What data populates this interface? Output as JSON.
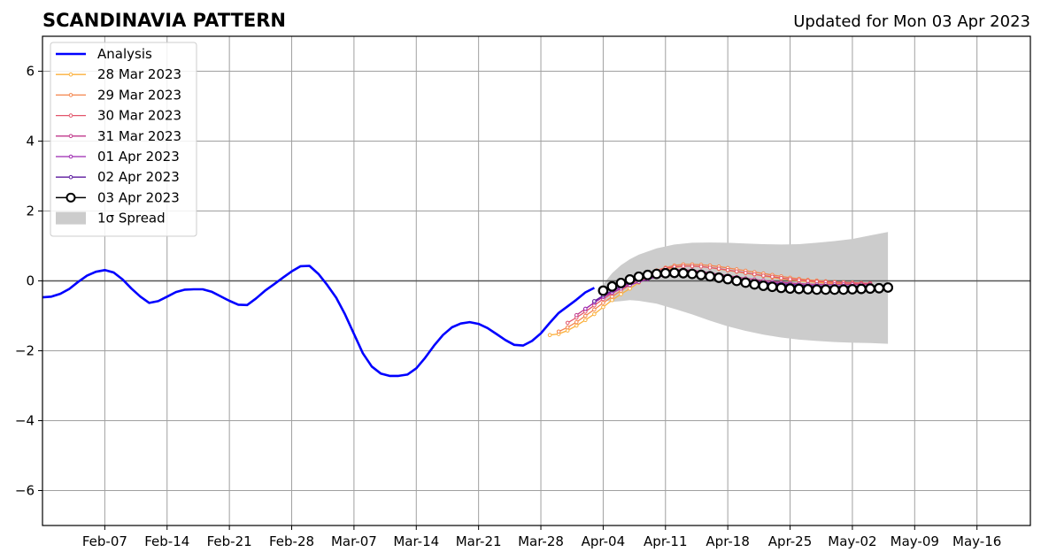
{
  "chart_data": {
    "type": "line",
    "title": "SCANDINAVIA PATTERN",
    "subtitle": "Updated for Mon 03 Apr 2023",
    "xlabel": "",
    "ylabel": "",
    "xlim": [
      "2023-01-31",
      "2023-05-22"
    ],
    "ylim": [
      -7,
      7
    ],
    "grid": true,
    "legend_position": "top-left",
    "x_ticks": [
      "Feb-07",
      "Feb-14",
      "Feb-21",
      "Feb-28",
      "Mar-07",
      "Mar-14",
      "Mar-21",
      "Mar-28",
      "Apr-04",
      "Apr-11",
      "Apr-18",
      "Apr-25",
      "May-02",
      "May-09",
      "May-16"
    ],
    "y_ticks": [
      6,
      4,
      2,
      0,
      -2,
      -4,
      -6
    ],
    "y_tick_labels": [
      "6",
      "4",
      "2",
      "0",
      "−2",
      "−4",
      "−6"
    ],
    "analysis": {
      "name": "Analysis",
      "color": "#0000ff",
      "x": [
        "2023-01-31",
        "2023-02-01",
        "2023-02-02",
        "2023-02-03",
        "2023-02-04",
        "2023-02-05",
        "2023-02-06",
        "2023-02-07",
        "2023-02-08",
        "2023-02-09",
        "2023-02-10",
        "2023-02-11",
        "2023-02-12",
        "2023-02-13",
        "2023-02-14",
        "2023-02-15",
        "2023-02-16",
        "2023-02-17",
        "2023-02-18",
        "2023-02-19",
        "2023-02-20",
        "2023-02-21",
        "2023-02-22",
        "2023-02-23",
        "2023-02-24",
        "2023-02-25",
        "2023-02-26",
        "2023-02-27",
        "2023-02-28",
        "2023-03-01",
        "2023-03-02",
        "2023-03-03",
        "2023-03-04",
        "2023-03-05",
        "2023-03-06",
        "2023-03-07",
        "2023-03-08",
        "2023-03-09",
        "2023-03-10",
        "2023-03-11",
        "2023-03-12",
        "2023-03-13",
        "2023-03-14",
        "2023-03-15",
        "2023-03-16",
        "2023-03-17",
        "2023-03-18",
        "2023-03-19",
        "2023-03-20",
        "2023-03-21",
        "2023-03-22",
        "2023-03-23",
        "2023-03-24",
        "2023-03-25",
        "2023-03-26",
        "2023-03-27",
        "2023-03-28",
        "2023-03-29",
        "2023-03-30",
        "2023-03-31",
        "2023-04-01",
        "2023-04-02",
        "2023-04-03"
      ],
      "y": [
        -0.47,
        -0.45,
        -0.37,
        -0.23,
        -0.03,
        0.15,
        0.26,
        0.31,
        0.24,
        0.04,
        -0.22,
        -0.45,
        -0.63,
        -0.58,
        -0.45,
        -0.32,
        -0.25,
        -0.24,
        -0.24,
        -0.31,
        -0.44,
        -0.57,
        -0.68,
        -0.69,
        -0.5,
        -0.28,
        -0.1,
        0.09,
        0.27,
        0.42,
        0.43,
        0.2,
        -0.12,
        -0.48,
        -0.96,
        -1.52,
        -2.07,
        -2.45,
        -2.65,
        -2.72,
        -2.72,
        -2.68,
        -2.5,
        -2.2,
        -1.85,
        -1.55,
        -1.33,
        -1.22,
        -1.18,
        -1.23,
        -1.35,
        -1.52,
        -1.69,
        -1.83,
        -1.85,
        -1.72,
        -1.5,
        -1.2,
        -0.92,
        -0.73,
        -0.54,
        -0.33,
        -0.2
      ]
    },
    "series": [
      {
        "name": "28 Mar 2023",
        "color": "#fbb03b",
        "x": [
          "2023-03-29",
          "2023-03-30",
          "2023-03-31",
          "2023-04-01",
          "2023-04-02",
          "2023-04-03",
          "2023-04-04",
          "2023-04-05",
          "2023-04-06",
          "2023-04-07",
          "2023-04-08",
          "2023-04-09",
          "2023-04-10",
          "2023-04-11",
          "2023-04-12",
          "2023-04-13",
          "2023-04-14",
          "2023-04-15",
          "2023-04-16",
          "2023-04-17",
          "2023-04-18",
          "2023-04-19",
          "2023-04-20",
          "2023-04-21",
          "2023-04-22",
          "2023-04-23",
          "2023-04-24",
          "2023-04-25",
          "2023-04-26",
          "2023-04-27",
          "2023-04-28",
          "2023-04-29",
          "2023-04-30",
          "2023-05-01",
          "2023-05-02",
          "2023-05-03",
          "2023-05-04"
        ],
        "y": [
          -1.55,
          -1.52,
          -1.42,
          -1.28,
          -1.12,
          -0.95,
          -0.75,
          -0.55,
          -0.38,
          -0.22,
          -0.05,
          0.1,
          0.22,
          0.32,
          0.38,
          0.42,
          0.42,
          0.41,
          0.38,
          0.34,
          0.3,
          0.26,
          0.22,
          0.18,
          0.14,
          0.1,
          0.06,
          0.03,
          0.0,
          -0.02,
          -0.04,
          -0.06,
          -0.07,
          -0.08,
          -0.09,
          -0.1,
          -0.1
        ]
      },
      {
        "name": "29 Mar 2023",
        "color": "#f4844c",
        "x": [
          "2023-03-30",
          "2023-03-31",
          "2023-04-01",
          "2023-04-02",
          "2023-04-03",
          "2023-04-04",
          "2023-04-05",
          "2023-04-06",
          "2023-04-07",
          "2023-04-08",
          "2023-04-09",
          "2023-04-10",
          "2023-04-11",
          "2023-04-12",
          "2023-04-13",
          "2023-04-14",
          "2023-04-15",
          "2023-04-16",
          "2023-04-17",
          "2023-04-18",
          "2023-04-19",
          "2023-04-20",
          "2023-04-21",
          "2023-04-22",
          "2023-04-23",
          "2023-04-24",
          "2023-04-25",
          "2023-04-26",
          "2023-04-27",
          "2023-04-28",
          "2023-04-29",
          "2023-04-30",
          "2023-05-01",
          "2023-05-02",
          "2023-05-03",
          "2023-05-04"
        ],
        "y": [
          -1.45,
          -1.33,
          -1.18,
          -1.0,
          -0.82,
          -0.63,
          -0.45,
          -0.28,
          -0.12,
          0.04,
          0.18,
          0.3,
          0.38,
          0.44,
          0.47,
          0.47,
          0.46,
          0.44,
          0.41,
          0.37,
          0.33,
          0.29,
          0.25,
          0.21,
          0.17,
          0.13,
          0.09,
          0.06,
          0.03,
          0.01,
          -0.01,
          -0.03,
          -0.04,
          -0.05,
          -0.06,
          -0.07
        ]
      },
      {
        "name": "30 Mar 2023",
        "color": "#e2566b",
        "x": [
          "2023-03-31",
          "2023-04-01",
          "2023-04-02",
          "2023-04-03",
          "2023-04-04",
          "2023-04-05",
          "2023-04-06",
          "2023-04-07",
          "2023-04-08",
          "2023-04-09",
          "2023-04-10",
          "2023-04-11",
          "2023-04-12",
          "2023-04-13",
          "2023-04-14",
          "2023-04-15",
          "2023-04-16",
          "2023-04-17",
          "2023-04-18",
          "2023-04-19",
          "2023-04-20",
          "2023-04-21",
          "2023-04-22",
          "2023-04-23",
          "2023-04-24",
          "2023-04-25",
          "2023-04-26",
          "2023-04-27",
          "2023-04-28",
          "2023-04-29",
          "2023-04-30",
          "2023-05-01",
          "2023-05-02",
          "2023-05-03",
          "2023-05-04"
        ],
        "y": [
          -1.2,
          -1.05,
          -0.88,
          -0.7,
          -0.52,
          -0.36,
          -0.21,
          -0.07,
          0.07,
          0.19,
          0.29,
          0.36,
          0.4,
          0.42,
          0.42,
          0.41,
          0.38,
          0.35,
          0.31,
          0.27,
          0.23,
          0.19,
          0.15,
          0.12,
          0.08,
          0.05,
          0.02,
          0.0,
          -0.02,
          -0.03,
          -0.04,
          -0.05,
          -0.06,
          -0.07,
          -0.07
        ]
      },
      {
        "name": "31 Mar 2023",
        "color": "#c13a8c",
        "x": [
          "2023-04-01",
          "2023-04-02",
          "2023-04-03",
          "2023-04-04",
          "2023-04-05",
          "2023-04-06",
          "2023-04-07",
          "2023-04-08",
          "2023-04-09",
          "2023-04-10",
          "2023-04-11",
          "2023-04-12",
          "2023-04-13",
          "2023-04-14",
          "2023-04-15",
          "2023-04-16",
          "2023-04-17",
          "2023-04-18",
          "2023-04-19",
          "2023-04-20",
          "2023-04-21",
          "2023-04-22",
          "2023-04-23",
          "2023-04-24",
          "2023-04-25",
          "2023-04-26",
          "2023-04-27",
          "2023-04-28",
          "2023-04-29",
          "2023-04-30",
          "2023-05-01",
          "2023-05-02",
          "2023-05-03",
          "2023-05-04"
        ],
        "y": [
          -0.98,
          -0.8,
          -0.62,
          -0.45,
          -0.3,
          -0.16,
          -0.03,
          0.09,
          0.19,
          0.26,
          0.3,
          0.32,
          0.32,
          0.3,
          0.27,
          0.23,
          0.19,
          0.15,
          0.11,
          0.07,
          0.04,
          0.01,
          -0.02,
          -0.04,
          -0.06,
          -0.08,
          -0.09,
          -0.1,
          -0.1,
          -0.1,
          -0.1,
          -0.1,
          -0.1,
          -0.1
        ]
      },
      {
        "name": "01 Apr 2023",
        "color": "#9c27b0",
        "x": [
          "2023-04-02",
          "2023-04-03",
          "2023-04-04",
          "2023-04-05",
          "2023-04-06",
          "2023-04-07",
          "2023-04-08",
          "2023-04-09",
          "2023-04-10",
          "2023-04-11",
          "2023-04-12",
          "2023-04-13",
          "2023-04-14",
          "2023-04-15",
          "2023-04-16",
          "2023-04-17",
          "2023-04-18",
          "2023-04-19",
          "2023-04-20",
          "2023-04-21",
          "2023-04-22",
          "2023-04-23",
          "2023-04-24",
          "2023-04-25",
          "2023-04-26",
          "2023-04-27",
          "2023-04-28",
          "2023-04-29",
          "2023-04-30",
          "2023-05-01",
          "2023-05-02",
          "2023-05-03",
          "2023-05-04"
        ],
        "y": [
          -0.8,
          -0.62,
          -0.46,
          -0.33,
          -0.22,
          -0.12,
          -0.03,
          0.05,
          0.11,
          0.15,
          0.17,
          0.17,
          0.16,
          0.14,
          0.11,
          0.08,
          0.05,
          0.02,
          -0.01,
          -0.04,
          -0.06,
          -0.08,
          -0.1,
          -0.12,
          -0.13,
          -0.14,
          -0.15,
          -0.15,
          -0.15,
          -0.15,
          -0.15,
          -0.15,
          -0.15
        ]
      },
      {
        "name": "02 Apr 2023",
        "color": "#5b1a9e",
        "x": [
          "2023-04-03",
          "2023-04-04",
          "2023-04-05",
          "2023-04-06",
          "2023-04-07",
          "2023-04-08",
          "2023-04-09",
          "2023-04-10",
          "2023-04-11",
          "2023-04-12",
          "2023-04-13",
          "2023-04-14",
          "2023-04-15",
          "2023-04-16",
          "2023-04-17",
          "2023-04-18",
          "2023-04-19",
          "2023-04-20",
          "2023-04-21",
          "2023-04-22",
          "2023-04-23",
          "2023-04-24",
          "2023-04-25",
          "2023-04-26",
          "2023-04-27",
          "2023-04-28",
          "2023-04-29",
          "2023-04-30",
          "2023-05-01",
          "2023-05-02",
          "2023-05-03",
          "2023-05-04"
        ],
        "y": [
          -0.58,
          -0.42,
          -0.28,
          -0.16,
          -0.06,
          0.03,
          0.1,
          0.15,
          0.19,
          0.2,
          0.2,
          0.19,
          0.17,
          0.14,
          0.11,
          0.08,
          0.05,
          0.02,
          -0.01,
          -0.04,
          -0.06,
          -0.08,
          -0.1,
          -0.12,
          -0.13,
          -0.14,
          -0.15,
          -0.15,
          -0.15,
          -0.15,
          -0.15,
          -0.15
        ]
      },
      {
        "name": "03 Apr 2023",
        "color": "#000000",
        "marker": "open-circle",
        "x": [
          "2023-04-04",
          "2023-04-05",
          "2023-04-06",
          "2023-04-07",
          "2023-04-08",
          "2023-04-09",
          "2023-04-10",
          "2023-04-11",
          "2023-04-12",
          "2023-04-13",
          "2023-04-14",
          "2023-04-15",
          "2023-04-16",
          "2023-04-17",
          "2023-04-18",
          "2023-04-19",
          "2023-04-20",
          "2023-04-21",
          "2023-04-22",
          "2023-04-23",
          "2023-04-24",
          "2023-04-25",
          "2023-04-26",
          "2023-04-27",
          "2023-04-28",
          "2023-04-29",
          "2023-04-30",
          "2023-05-01",
          "2023-05-02",
          "2023-05-03",
          "2023-05-04",
          "2023-05-05",
          "2023-05-06"
        ],
        "y": [
          -0.28,
          -0.16,
          -0.06,
          0.04,
          0.12,
          0.17,
          0.2,
          0.22,
          0.23,
          0.22,
          0.2,
          0.17,
          0.13,
          0.09,
          0.05,
          0.0,
          -0.05,
          -0.1,
          -0.14,
          -0.17,
          -0.2,
          -0.22,
          -0.23,
          -0.24,
          -0.25,
          -0.25,
          -0.25,
          -0.25,
          -0.24,
          -0.23,
          -0.22,
          -0.21,
          -0.19
        ]
      }
    ],
    "spread": {
      "name": "1σ Spread",
      "color": "#cccccc",
      "x": [
        "2023-04-04",
        "2023-04-05",
        "2023-04-06",
        "2023-04-07",
        "2023-04-08",
        "2023-04-10",
        "2023-04-12",
        "2023-04-14",
        "2023-04-16",
        "2023-04-18",
        "2023-04-20",
        "2023-04-22",
        "2023-04-24",
        "2023-04-26",
        "2023-04-28",
        "2023-04-30",
        "2023-05-02",
        "2023-05-04",
        "2023-05-06"
      ],
      "upper": [
        -0.1,
        0.22,
        0.45,
        0.62,
        0.75,
        0.93,
        1.04,
        1.09,
        1.1,
        1.09,
        1.07,
        1.05,
        1.04,
        1.05,
        1.09,
        1.14,
        1.2,
        1.3,
        1.4
      ],
      "lower": [
        -0.55,
        -0.6,
        -0.58,
        -0.55,
        -0.57,
        -0.65,
        -0.8,
        -0.96,
        -1.14,
        -1.3,
        -1.43,
        -1.54,
        -1.62,
        -1.68,
        -1.72,
        -1.75,
        -1.77,
        -1.78,
        -1.8
      ]
    }
  }
}
